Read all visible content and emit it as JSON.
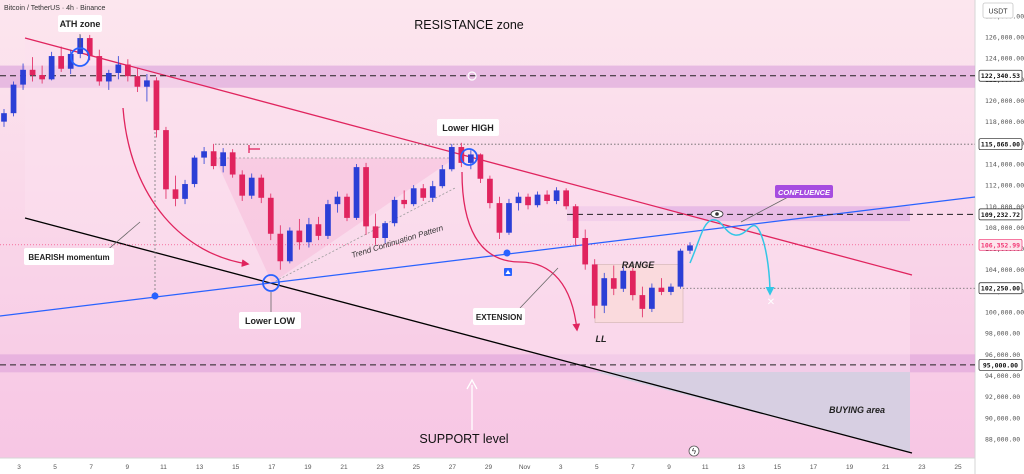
{
  "header": {
    "symbol_title": "Bitcoin / TetherUS · 4h · Binance",
    "currency": "USDT"
  },
  "chart_data": {
    "type": "candlestick",
    "x_ticks": [
      "3",
      "5",
      "7",
      "9",
      "11",
      "13",
      "15",
      "17",
      "19",
      "21",
      "23",
      "25",
      "27",
      "29",
      "Nov",
      "3",
      "5",
      "7",
      "9",
      "11",
      "13",
      "15",
      "17",
      "19",
      "21",
      "23",
      "25"
    ],
    "y_ticks": [
      88000,
      90000,
      92000,
      94000,
      96000,
      98000,
      100000,
      102000,
      104000,
      106000,
      108000,
      110000,
      112000,
      114000,
      116000,
      118000,
      120000,
      122000,
      124000,
      126000,
      128000
    ],
    "y_tick_labels": [
      "88,000.00",
      "90,000.00",
      "92,000.00",
      "94,000.00",
      "96,000.00",
      "98,000.00",
      "100,000.00",
      "102,000.00",
      "104,000.00",
      "106,000.00",
      "108,000.00",
      "110,000.00",
      "112,000.00",
      "114,000.00",
      "116,000.00",
      "118,000.00",
      "120,000.00",
      "122,000.00",
      "124,000.00",
      "126,000.00",
      "128,000.00"
    ],
    "ylim": [
      86200,
      129500
    ],
    "price_levels": [
      {
        "value": 122340.53,
        "label": "122,340.53",
        "style": "dashed"
      },
      {
        "value": 115868.0,
        "label": "115,868.00",
        "style": "dotted"
      },
      {
        "value": 109232.72,
        "label": "109,232.72",
        "style": "dashed"
      },
      {
        "value": 106352.99,
        "label": "106,352.99",
        "style": "current"
      },
      {
        "value": 102250.0,
        "label": "102,250.00",
        "style": "dotted"
      },
      {
        "value": 95000.0,
        "label": "95,000.00",
        "style": "dashed"
      }
    ],
    "zones": [
      {
        "name": "resistance-zone",
        "from": 121200,
        "to": 123300
      },
      {
        "name": "range-box",
        "from": 99000,
        "to": 104500
      },
      {
        "name": "confluence-band",
        "from": 108600,
        "to": 110000
      },
      {
        "name": "support-zone",
        "from": 94300,
        "to": 96000
      }
    ],
    "candles": [
      {
        "o": 118000,
        "h": 119200,
        "l": 117500,
        "c": 118800
      },
      {
        "o": 118800,
        "h": 121800,
        "l": 118500,
        "c": 121500
      },
      {
        "o": 121500,
        "h": 123500,
        "l": 121000,
        "c": 122900
      },
      {
        "o": 122900,
        "h": 124100,
        "l": 121800,
        "c": 122400
      },
      {
        "o": 122400,
        "h": 123300,
        "l": 121600,
        "c": 122000
      },
      {
        "o": 122000,
        "h": 124600,
        "l": 121900,
        "c": 124200
      },
      {
        "o": 124200,
        "h": 125100,
        "l": 122700,
        "c": 123000
      },
      {
        "o": 123000,
        "h": 124800,
        "l": 122500,
        "c": 124400
      },
      {
        "o": 124400,
        "h": 126200,
        "l": 124000,
        "c": 125900
      },
      {
        "o": 125900,
        "h": 126200,
        "l": 123800,
        "c": 124200
      },
      {
        "o": 124200,
        "h": 124800,
        "l": 121400,
        "c": 121800
      },
      {
        "o": 121800,
        "h": 122900,
        "l": 121000,
        "c": 122600
      },
      {
        "o": 122600,
        "h": 124200,
        "l": 122000,
        "c": 123400
      },
      {
        "o": 123400,
        "h": 123900,
        "l": 121800,
        "c": 122300
      },
      {
        "o": 122300,
        "h": 123100,
        "l": 120800,
        "c": 121300
      },
      {
        "o": 121300,
        "h": 122500,
        "l": 119900,
        "c": 121900
      },
      {
        "o": 121900,
        "h": 122200,
        "l": 116500,
        "c": 117200
      },
      {
        "o": 117200,
        "h": 117500,
        "l": 110700,
        "c": 111600
      },
      {
        "o": 111600,
        "h": 112900,
        "l": 110000,
        "c": 110700
      },
      {
        "o": 110700,
        "h": 112500,
        "l": 110200,
        "c": 112100
      },
      {
        "o": 112100,
        "h": 114800,
        "l": 111800,
        "c": 114600
      },
      {
        "o": 114600,
        "h": 115600,
        "l": 114000,
        "c": 115200
      },
      {
        "o": 115200,
        "h": 115900,
        "l": 113500,
        "c": 113800
      },
      {
        "o": 113800,
        "h": 115500,
        "l": 113200,
        "c": 115100
      },
      {
        "o": 115100,
        "h": 115400,
        "l": 112700,
        "c": 113000
      },
      {
        "o": 113000,
        "h": 113400,
        "l": 110500,
        "c": 111000
      },
      {
        "o": 111000,
        "h": 113100,
        "l": 110700,
        "c": 112700
      },
      {
        "o": 112700,
        "h": 113000,
        "l": 110300,
        "c": 110800
      },
      {
        "o": 110800,
        "h": 111200,
        "l": 106800,
        "c": 107400
      },
      {
        "o": 107400,
        "h": 108200,
        "l": 104000,
        "c": 104800
      },
      {
        "o": 104800,
        "h": 108000,
        "l": 104600,
        "c": 107700
      },
      {
        "o": 107700,
        "h": 108800,
        "l": 105900,
        "c": 106600
      },
      {
        "o": 106600,
        "h": 108900,
        "l": 106100,
        "c": 108300
      },
      {
        "o": 108300,
        "h": 109000,
        "l": 106800,
        "c": 107200
      },
      {
        "o": 107200,
        "h": 110600,
        "l": 106900,
        "c": 110200
      },
      {
        "o": 110200,
        "h": 111400,
        "l": 109400,
        "c": 110900
      },
      {
        "o": 110900,
        "h": 111200,
        "l": 108600,
        "c": 108900
      },
      {
        "o": 108900,
        "h": 114000,
        "l": 108700,
        "c": 113700
      },
      {
        "o": 113700,
        "h": 114100,
        "l": 107300,
        "c": 108100
      },
      {
        "o": 108100,
        "h": 109300,
        "l": 106400,
        "c": 107000
      },
      {
        "o": 107000,
        "h": 108600,
        "l": 106500,
        "c": 108400
      },
      {
        "o": 108400,
        "h": 110900,
        "l": 108100,
        "c": 110600
      },
      {
        "o": 110600,
        "h": 111500,
        "l": 109800,
        "c": 110200
      },
      {
        "o": 110200,
        "h": 112000,
        "l": 110000,
        "c": 111700
      },
      {
        "o": 111700,
        "h": 112100,
        "l": 110500,
        "c": 110800
      },
      {
        "o": 110800,
        "h": 112400,
        "l": 110400,
        "c": 111900
      },
      {
        "o": 111900,
        "h": 113900,
        "l": 111700,
        "c": 113500
      },
      {
        "o": 113500,
        "h": 115900,
        "l": 113300,
        "c": 115600
      },
      {
        "o": 115600,
        "h": 116000,
        "l": 113700,
        "c": 114100
      },
      {
        "o": 114100,
        "h": 115300,
        "l": 113500,
        "c": 114900
      },
      {
        "o": 114900,
        "h": 115000,
        "l": 112200,
        "c": 112600
      },
      {
        "o": 112600,
        "h": 112900,
        "l": 109800,
        "c": 110300
      },
      {
        "o": 110300,
        "h": 110900,
        "l": 106900,
        "c": 107500
      },
      {
        "o": 107500,
        "h": 110700,
        "l": 107300,
        "c": 110300
      },
      {
        "o": 110300,
        "h": 111300,
        "l": 109600,
        "c": 110900
      },
      {
        "o": 110900,
        "h": 111200,
        "l": 109700,
        "c": 110100
      },
      {
        "o": 110100,
        "h": 111400,
        "l": 109900,
        "c": 111100
      },
      {
        "o": 111100,
        "h": 111500,
        "l": 110200,
        "c": 110500
      },
      {
        "o": 110500,
        "h": 111800,
        "l": 110200,
        "c": 111500
      },
      {
        "o": 111500,
        "h": 111700,
        "l": 109700,
        "c": 110000
      },
      {
        "o": 110000,
        "h": 110200,
        "l": 106300,
        "c": 107000
      },
      {
        "o": 107000,
        "h": 107800,
        "l": 104000,
        "c": 104500
      },
      {
        "o": 104500,
        "h": 105000,
        "l": 99400,
        "c": 100600
      },
      {
        "o": 100600,
        "h": 103700,
        "l": 99900,
        "c": 103200
      },
      {
        "o": 103200,
        "h": 104400,
        "l": 101600,
        "c": 102200
      },
      {
        "o": 102200,
        "h": 104300,
        "l": 101900,
        "c": 103900
      },
      {
        "o": 103900,
        "h": 104200,
        "l": 101100,
        "c": 101600
      },
      {
        "o": 101600,
        "h": 102400,
        "l": 99500,
        "c": 100300
      },
      {
        "o": 100300,
        "h": 102700,
        "l": 100000,
        "c": 102300
      },
      {
        "o": 102300,
        "h": 103200,
        "l": 101600,
        "c": 101900
      },
      {
        "o": 101900,
        "h": 102700,
        "l": 101600,
        "c": 102400
      },
      {
        "o": 102400,
        "h": 106000,
        "l": 102200,
        "c": 105800
      },
      {
        "o": 105800,
        "h": 106600,
        "l": 105500,
        "c": 106300
      }
    ],
    "annotations": {
      "resistance": "RESISTANCE zone",
      "support": "SUPPORT level",
      "ath": "ATH zone",
      "lower_high": "Lower HIGH",
      "lower_low": "Lower LOW",
      "bearish": "BEARISH momentum",
      "trend": "Trend Continuation Pattern",
      "extension": "EXTENSION",
      "range": "RANGE",
      "ll": "LL",
      "confluence": "CONFLUENCE",
      "buying": "BUYING area"
    }
  },
  "colors": {
    "up": "#2b3fd6",
    "down": "#e0245e",
    "resistance_line": "#e0245e",
    "support_line": "#000000",
    "trend_line": "#2962ff",
    "projection": "#33c6e6",
    "confluence_badge": "#a64ce0",
    "current_price": "#f23674"
  }
}
